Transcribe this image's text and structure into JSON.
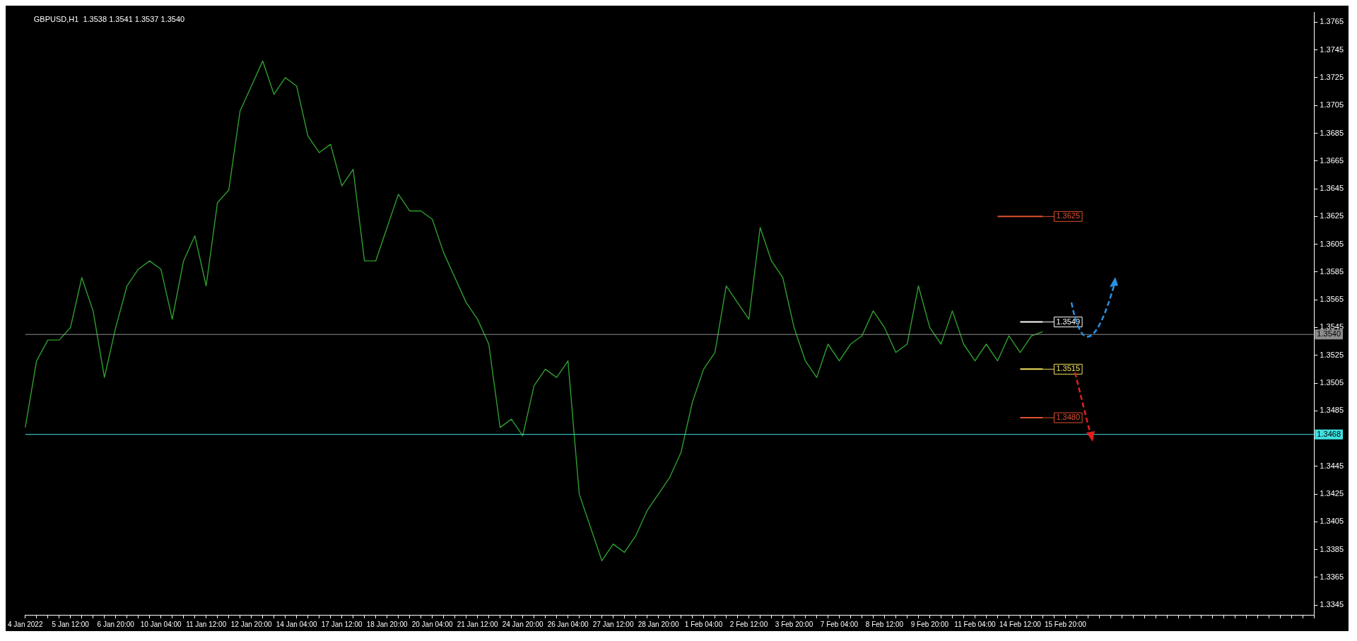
{
  "chart_data": {
    "type": "line",
    "title": "GBPUSD,H1  1.3538 1.3541 1.3537 1.3540",
    "categories": [
      "4 Jan 2022",
      null,
      null,
      null,
      "5 Jan 12:00",
      null,
      null,
      null,
      "6 Jan 20:00",
      null,
      null,
      null,
      "10 Jan 04:00",
      null,
      null,
      null,
      "11 Jan 12:00",
      null,
      null,
      null,
      "12 Jan 20:00",
      null,
      null,
      null,
      "14 Jan 04:00",
      null,
      null,
      null,
      "17 Jan 12:00",
      null,
      null,
      null,
      "18 Jan 20:00",
      null,
      null,
      null,
      "20 Jan 04:00",
      null,
      null,
      null,
      "21 Jan 12:00",
      null,
      null,
      null,
      "24 Jan 20:00",
      null,
      null,
      null,
      "26 Jan 04:00",
      null,
      null,
      null,
      "27 Jan 12:00",
      null,
      null,
      null,
      "28 Jan 20:00",
      null,
      null,
      null,
      "1 Feb 04:00",
      null,
      null,
      null,
      "2 Feb 12:00",
      null,
      null,
      null,
      "3 Feb 20:00",
      null,
      null,
      null,
      "7 Feb 04:00",
      null,
      null,
      null,
      "8 Feb 12:00",
      null,
      null,
      null,
      "9 Feb 20:00",
      null,
      null,
      null,
      "11 Feb 04:00",
      null,
      null,
      null,
      "14 Feb 12:00",
      null,
      null,
      null,
      "15 Feb 20:00",
      null,
      null,
      null,
      null,
      null,
      null,
      null,
      null,
      null,
      null,
      null,
      null,
      null,
      null,
      null,
      null,
      null,
      null,
      null,
      null,
      null,
      null
    ],
    "series": [
      {
        "color": "#2e9e2e",
        "values": [
          1.3473,
          1.3521,
          1.3536,
          1.3536,
          1.3545,
          1.3581,
          1.3557,
          1.3509,
          1.3545,
          1.3575,
          1.3587,
          1.3593,
          1.3587,
          1.3551,
          1.3593,
          1.3611,
          1.3575,
          1.3635,
          1.3644,
          1.3701,
          1.3719,
          1.3737,
          1.3713,
          1.3725,
          1.3719,
          1.3683,
          1.3671,
          1.3677,
          1.3647,
          1.3659,
          1.3593,
          1.3593,
          1.3617,
          1.3641,
          1.3629,
          1.3629,
          1.3623,
          1.3599,
          1.3581,
          1.3563,
          1.3551,
          1.3533,
          1.3473,
          1.3479,
          1.3467,
          1.3503,
          1.3515,
          1.3509,
          1.3521,
          1.3425,
          1.3401,
          1.3377,
          1.3389,
          1.3383,
          1.3395,
          1.3413,
          1.3425,
          1.3437,
          1.3455,
          1.3491,
          1.3515,
          1.3527,
          1.3575,
          1.3563,
          1.3551,
          1.3617,
          1.3593,
          1.3581,
          1.3545,
          1.3521,
          1.3509,
          1.3533,
          1.3521,
          1.3533,
          1.3539,
          1.3557,
          1.3545,
          1.3527,
          1.3533,
          1.3575,
          1.3545,
          1.3533,
          1.3557,
          1.3533,
          1.3521,
          1.3533,
          1.3521,
          1.3539,
          1.3527,
          1.3539,
          1.3542,
          null,
          null,
          null,
          null,
          null,
          null,
          null,
          null,
          null,
          null,
          null,
          null,
          null,
          null,
          null,
          null,
          null,
          null,
          null,
          null,
          null,
          null,
          null,
          null
        ]
      },
      {
        "color": "#e05030",
        "values": [
          null,
          null,
          null,
          null,
          null,
          null,
          null,
          null,
          null,
          null,
          null,
          null,
          null,
          null,
          null,
          null,
          null,
          null,
          null,
          null,
          null,
          null,
          null,
          null,
          null,
          null,
          null,
          null,
          null,
          null,
          null,
          null,
          null,
          null,
          null,
          null,
          null,
          null,
          null,
          null,
          null,
          null,
          null,
          null,
          null,
          null,
          null,
          null,
          null,
          null,
          null,
          null,
          null,
          null,
          null,
          null,
          null,
          null,
          null,
          null,
          null,
          null,
          null,
          null,
          null,
          null,
          null,
          null,
          null,
          null,
          null,
          null,
          null,
          null,
          null,
          null,
          null,
          null,
          null,
          null,
          null,
          null,
          null,
          null,
          null,
          null,
          1.3625,
          1.3625,
          1.3625,
          1.3625,
          1.3625,
          null,
          null,
          null,
          null,
          null,
          null,
          null,
          null,
          null,
          null,
          null,
          null,
          null,
          null,
          null,
          null,
          null,
          null,
          null,
          null,
          null,
          null,
          null,
          null
        ],
        "value_labels": [
          null,
          null,
          null,
          null,
          null,
          null,
          null,
          null,
          null,
          null,
          null,
          null,
          null,
          null,
          null,
          null,
          null,
          null,
          null,
          null,
          null,
          null,
          null,
          null,
          null,
          null,
          null,
          null,
          null,
          null,
          null,
          null,
          null,
          null,
          null,
          null,
          null,
          null,
          null,
          null,
          null,
          null,
          null,
          null,
          null,
          null,
          null,
          null,
          null,
          null,
          null,
          null,
          null,
          null,
          null,
          null,
          null,
          null,
          null,
          null,
          null,
          null,
          null,
          null,
          null,
          null,
          null,
          null,
          null,
          null,
          null,
          null,
          null,
          null,
          null,
          null,
          null,
          null,
          null,
          null,
          null,
          null,
          null,
          null,
          null,
          null,
          null,
          null,
          null,
          null,
          "1.3625",
          null,
          null,
          null,
          null,
          null,
          null,
          null,
          null,
          null,
          null,
          null,
          null,
          null,
          null,
          null,
          null,
          null,
          null,
          null,
          null,
          null,
          null,
          null,
          null
        ]
      },
      {
        "color": "#ffffff",
        "values": [
          null,
          null,
          null,
          null,
          null,
          null,
          null,
          null,
          null,
          null,
          null,
          null,
          null,
          null,
          null,
          null,
          null,
          null,
          null,
          null,
          null,
          null,
          null,
          null,
          null,
          null,
          null,
          null,
          null,
          null,
          null,
          null,
          null,
          null,
          null,
          null,
          null,
          null,
          null,
          null,
          null,
          null,
          null,
          null,
          null,
          null,
          null,
          null,
          null,
          null,
          null,
          null,
          null,
          null,
          null,
          null,
          null,
          null,
          null,
          null,
          null,
          null,
          null,
          null,
          null,
          null,
          null,
          null,
          null,
          null,
          null,
          null,
          null,
          null,
          null,
          null,
          null,
          null,
          null,
          null,
          null,
          null,
          null,
          null,
          null,
          null,
          null,
          null,
          1.3549,
          1.3549,
          1.3549,
          null,
          null,
          null,
          null,
          null,
          null,
          null,
          null,
          null,
          null,
          null,
          null,
          null,
          null,
          null,
          null,
          null,
          null,
          null,
          null,
          null,
          null,
          null,
          null
        ],
        "value_labels": [
          null,
          null,
          null,
          null,
          null,
          null,
          null,
          null,
          null,
          null,
          null,
          null,
          null,
          null,
          null,
          null,
          null,
          null,
          null,
          null,
          null,
          null,
          null,
          null,
          null,
          null,
          null,
          null,
          null,
          null,
          null,
          null,
          null,
          null,
          null,
          null,
          null,
          null,
          null,
          null,
          null,
          null,
          null,
          null,
          null,
          null,
          null,
          null,
          null,
          null,
          null,
          null,
          null,
          null,
          null,
          null,
          null,
          null,
          null,
          null,
          null,
          null,
          null,
          null,
          null,
          null,
          null,
          null,
          null,
          null,
          null,
          null,
          null,
          null,
          null,
          null,
          null,
          null,
          null,
          null,
          null,
          null,
          null,
          null,
          null,
          null,
          null,
          null,
          null,
          null,
          "1.3549",
          null,
          null,
          null,
          null,
          null,
          null,
          null,
          null,
          null,
          null,
          null,
          null,
          null,
          null,
          null,
          null,
          null,
          null,
          null,
          null,
          null,
          null,
          null,
          null
        ]
      },
      {
        "color": "#f0e060",
        "values": [
          null,
          null,
          null,
          null,
          null,
          null,
          null,
          null,
          null,
          null,
          null,
          null,
          null,
          null,
          null,
          null,
          null,
          null,
          null,
          null,
          null,
          null,
          null,
          null,
          null,
          null,
          null,
          null,
          null,
          null,
          null,
          null,
          null,
          null,
          null,
          null,
          null,
          null,
          null,
          null,
          null,
          null,
          null,
          null,
          null,
          null,
          null,
          null,
          null,
          null,
          null,
          null,
          null,
          null,
          null,
          null,
          null,
          null,
          null,
          null,
          null,
          null,
          null,
          null,
          null,
          null,
          null,
          null,
          null,
          null,
          null,
          null,
          null,
          null,
          null,
          null,
          null,
          null,
          null,
          null,
          null,
          null,
          null,
          null,
          null,
          null,
          null,
          null,
          1.3515,
          1.3515,
          1.3515,
          null,
          null,
          null,
          null,
          null,
          null,
          null,
          null,
          null,
          null,
          null,
          null,
          null,
          null,
          null,
          null,
          null,
          null,
          null,
          null,
          null,
          null,
          null,
          null
        ],
        "value_labels": [
          null,
          null,
          null,
          null,
          null,
          null,
          null,
          null,
          null,
          null,
          null,
          null,
          null,
          null,
          null,
          null,
          null,
          null,
          null,
          null,
          null,
          null,
          null,
          null,
          null,
          null,
          null,
          null,
          null,
          null,
          null,
          null,
          null,
          null,
          null,
          null,
          null,
          null,
          null,
          null,
          null,
          null,
          null,
          null,
          null,
          null,
          null,
          null,
          null,
          null,
          null,
          null,
          null,
          null,
          null,
          null,
          null,
          null,
          null,
          null,
          null,
          null,
          null,
          null,
          null,
          null,
          null,
          null,
          null,
          null,
          null,
          null,
          null,
          null,
          null,
          null,
          null,
          null,
          null,
          null,
          null,
          null,
          null,
          null,
          null,
          null,
          null,
          null,
          null,
          null,
          "1.3515",
          null,
          null,
          null,
          null,
          null,
          null,
          null,
          null,
          null,
          null,
          null,
          null,
          null,
          null,
          null,
          null,
          null,
          null,
          null,
          null,
          null,
          null,
          null,
          null
        ]
      },
      {
        "color": "#e05030",
        "values": [
          null,
          null,
          null,
          null,
          null,
          null,
          null,
          null,
          null,
          null,
          null,
          null,
          null,
          null,
          null,
          null,
          null,
          null,
          null,
          null,
          null,
          null,
          null,
          null,
          null,
          null,
          null,
          null,
          null,
          null,
          null,
          null,
          null,
          null,
          null,
          null,
          null,
          null,
          null,
          null,
          null,
          null,
          null,
          null,
          null,
          null,
          null,
          null,
          null,
          null,
          null,
          null,
          null,
          null,
          null,
          null,
          null,
          null,
          null,
          null,
          null,
          null,
          null,
          null,
          null,
          null,
          null,
          null,
          null,
          null,
          null,
          null,
          null,
          null,
          null,
          null,
          null,
          null,
          null,
          null,
          null,
          null,
          null,
          null,
          null,
          null,
          null,
          null,
          1.348,
          1.348,
          1.348,
          null,
          null,
          null,
          null,
          null,
          null,
          null,
          null,
          null,
          null,
          null,
          null,
          null,
          null,
          null,
          null,
          null,
          null,
          null,
          null,
          null,
          null,
          null,
          null
        ],
        "value_labels": [
          null,
          null,
          null,
          null,
          null,
          null,
          null,
          null,
          null,
          null,
          null,
          null,
          null,
          null,
          null,
          null,
          null,
          null,
          null,
          null,
          null,
          null,
          null,
          null,
          null,
          null,
          null,
          null,
          null,
          null,
          null,
          null,
          null,
          null,
          null,
          null,
          null,
          null,
          null,
          null,
          null,
          null,
          null,
          null,
          null,
          null,
          null,
          null,
          null,
          null,
          null,
          null,
          null,
          null,
          null,
          null,
          null,
          null,
          null,
          null,
          null,
          null,
          null,
          null,
          null,
          null,
          null,
          null,
          null,
          null,
          null,
          null,
          null,
          null,
          null,
          null,
          null,
          null,
          null,
          null,
          null,
          null,
          null,
          null,
          null,
          null,
          null,
          null,
          null,
          null,
          "1.3480",
          null,
          null,
          null,
          null,
          null,
          null,
          null,
          null,
          null,
          null,
          null,
          null,
          null,
          null,
          null,
          null,
          null,
          null,
          null,
          null,
          null,
          null,
          null,
          null
        ]
      }
    ],
    "ylim": [
      1.3338,
      1.3772
    ],
    "yticks": [
      1.3345,
      1.3365,
      1.3385,
      1.3405,
      1.3425,
      1.3445,
      {
        "value": 1.3465,
        "label": null
      },
      1.3485,
      1.3505,
      1.3525,
      1.3545,
      1.3565,
      1.3585,
      1.3605,
      1.3625,
      1.3645,
      1.3665,
      1.3685,
      1.3705,
      1.3725,
      1.3745,
      1.3765
    ],
    "ref_lines": [
      {
        "axis": "y",
        "value": 1.354,
        "label": "1.3540",
        "color": "#8c8c8c"
      },
      {
        "axis": "y",
        "value": 1.3468,
        "label": "1.3468",
        "color": "#40e0e0"
      }
    ],
    "legend": false,
    "grid": false,
    "marker": "none",
    "line_style": "solid"
  }
}
